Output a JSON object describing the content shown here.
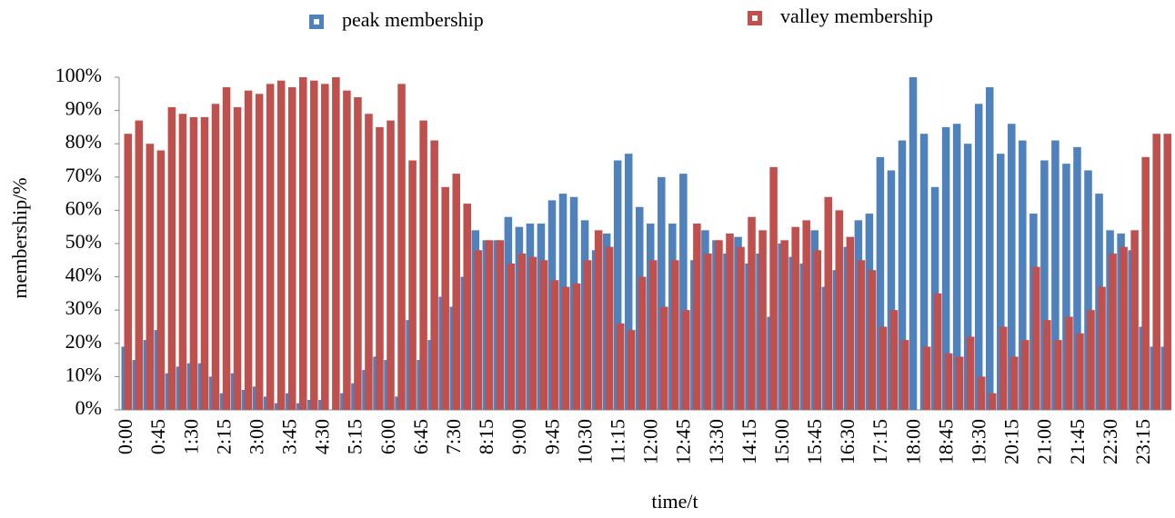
{
  "chart_data": {
    "type": "bar",
    "x_label": "time/t",
    "y_label": "membership/%",
    "categories": [
      "0:00",
      null,
      null,
      "0:45",
      null,
      null,
      "1:30",
      null,
      null,
      "2:15",
      null,
      null,
      "3:00",
      null,
      null,
      "3:45",
      null,
      null,
      "4:30",
      null,
      null,
      "5:15",
      null,
      null,
      "6:00",
      null,
      null,
      "6:45",
      null,
      null,
      "7:30",
      null,
      null,
      "8:15",
      null,
      null,
      "9:00",
      null,
      null,
      "9:45",
      null,
      null,
      "10:30",
      null,
      null,
      "11:15",
      null,
      null,
      "12:00",
      null,
      null,
      "12:45",
      null,
      null,
      "13:30",
      null,
      null,
      "14:15",
      null,
      null,
      "15:00",
      null,
      null,
      "15:45",
      null,
      null,
      "16:30",
      null,
      null,
      "17:15",
      null,
      null,
      "18:00",
      null,
      null,
      "18:45",
      null,
      null,
      "19:30",
      null,
      null,
      "20:15",
      null,
      null,
      "21:00",
      null,
      null,
      "21:45",
      null,
      null,
      "22:30",
      null,
      null,
      "23:15",
      null,
      null
    ],
    "series": [
      {
        "name": "peak membership",
        "color": "#4f81bd",
        "values": [
          19,
          15,
          21,
          24,
          11,
          13,
          14,
          14,
          10,
          5,
          11,
          6,
          7,
          4,
          2,
          5,
          2,
          3,
          3,
          0,
          5,
          8,
          12,
          16,
          15,
          4,
          27,
          15,
          21,
          34,
          31,
          40,
          54,
          51,
          51,
          58,
          55,
          56,
          56,
          63,
          65,
          64,
          57,
          48,
          53,
          75,
          77,
          61,
          56,
          70,
          56,
          71,
          45,
          54,
          51,
          47,
          52,
          44,
          47,
          28,
          50,
          46,
          44,
          54,
          37,
          42,
          49,
          57,
          59,
          76,
          72,
          81,
          100,
          83,
          67,
          85,
          86,
          80,
          92,
          97,
          77,
          86,
          81,
          59,
          75,
          81,
          74,
          79,
          72,
          65,
          54,
          53,
          48,
          25,
          19,
          19
        ]
      },
      {
        "name": "valley membership",
        "color": "#c0504d",
        "values": [
          83,
          87,
          80,
          78,
          91,
          89,
          88,
          88,
          92,
          97,
          91,
          96,
          95,
          98,
          99,
          97,
          100,
          99,
          98,
          100,
          96,
          94,
          89,
          85,
          87,
          98,
          75,
          87,
          81,
          67,
          71,
          62,
          48,
          51,
          51,
          44,
          47,
          46,
          45,
          39,
          37,
          38,
          45,
          54,
          49,
          26,
          24,
          40,
          45,
          31,
          45,
          30,
          56,
          47,
          51,
          53,
          49,
          58,
          54,
          73,
          51,
          55,
          57,
          48,
          64,
          60,
          52,
          45,
          42,
          25,
          30,
          21,
          0,
          19,
          35,
          17,
          16,
          22,
          10,
          5,
          25,
          16,
          21,
          43,
          27,
          21,
          28,
          23,
          30,
          37,
          47,
          49,
          54,
          76,
          83,
          83
        ]
      }
    ],
    "ylim": [
      0,
      100
    ],
    "yticks": [
      {
        "value": 0,
        "label": "0%"
      },
      {
        "value": 10,
        "label": "10%"
      },
      {
        "value": 20,
        "label": "20%"
      },
      {
        "value": 30,
        "label": "30%"
      },
      {
        "value": 40,
        "label": "40%"
      },
      {
        "value": 50,
        "label": "50%"
      },
      {
        "value": 60,
        "label": "60%"
      },
      {
        "value": 70,
        "label": "70%"
      },
      {
        "value": 80,
        "label": "80%"
      },
      {
        "value": 90,
        "label": "90%"
      },
      {
        "value": 100,
        "label": "100%"
      }
    ],
    "grid": false
  }
}
